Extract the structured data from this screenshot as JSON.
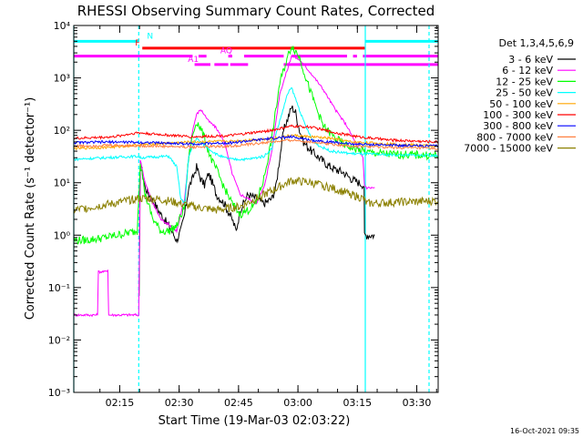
{
  "chart_data": {
    "type": "line",
    "title": "RHESSI Observing Summary Count Rates, Corrected",
    "xlabel": "Start Time (19-Mar-03 02:03:22)",
    "ylabel": "Corrected Count Rate (s⁻¹ detector⁻¹)",
    "x_unit": "minutes after 02:03:22",
    "xlim": [
      0,
      92
    ],
    "ylim": [
      0.001,
      10000
    ],
    "yscale": "log",
    "grid": false,
    "legend_position": "top-right",
    "legend_title": "Det 1,3,4,5,6,9",
    "xticks": [
      {
        "t": 11.6,
        "label": "02:15"
      },
      {
        "t": 26.6,
        "label": "02:30"
      },
      {
        "t": 41.6,
        "label": "02:45"
      },
      {
        "t": 56.6,
        "label": "03:00"
      },
      {
        "t": 71.6,
        "label": "03:15"
      },
      {
        "t": 86.6,
        "label": "03:30"
      }
    ],
    "yticks": [
      {
        "v": 0.001,
        "label": "10⁻³"
      },
      {
        "v": 0.01,
        "label": "10⁻²"
      },
      {
        "v": 0.1,
        "label": "10⁻¹"
      },
      {
        "v": 1,
        "label": "10⁰"
      },
      {
        "v": 10,
        "label": "10¹"
      },
      {
        "v": 100,
        "label": "10²"
      },
      {
        "v": 1000,
        "label": "10³"
      },
      {
        "v": 10000,
        "label": "10⁴"
      }
    ],
    "vlines": [
      {
        "t": 0,
        "color": "#00ffff",
        "style": "solid"
      },
      {
        "t": 16.4,
        "color": "#00ffff",
        "style": "dashed"
      },
      {
        "t": 73.6,
        "color": "#00ffff",
        "style": "solid"
      },
      {
        "t": 89.7,
        "color": "#00ffff",
        "style": "dashed"
      }
    ],
    "flags": [
      {
        "label": "N",
        "color": "#00ffff",
        "y": 5000,
        "segments": [
          [
            0,
            16.4
          ],
          [
            73.6,
            92
          ]
        ]
      },
      {
        "label": "F",
        "color": "#ff0000",
        "y": 3700,
        "segments": [
          [
            17.3,
            73.6
          ]
        ]
      },
      {
        "label": "AQ",
        "color": "#ff00ff",
        "y": 2600,
        "segments": [
          [
            0,
            30
          ],
          [
            31.5,
            33.5
          ],
          [
            39,
            40
          ],
          [
            43,
            53
          ],
          [
            55,
            69
          ],
          [
            70.5,
            71.5
          ],
          [
            73,
            92
          ]
        ]
      },
      {
        "label": "A1",
        "color": "#ff00ff",
        "y": 1800,
        "segments": [
          [
            30.5,
            34.5
          ],
          [
            35.5,
            39
          ],
          [
            39.5,
            44
          ],
          [
            53,
            92
          ]
        ]
      }
    ],
    "series": [
      {
        "name": "3 - 6 keV",
        "color": "#000000",
        "points": [
          [
            16.5,
            0.06
          ],
          [
            16.8,
            25
          ],
          [
            18,
            8
          ],
          [
            22,
            2.5
          ],
          [
            24,
            1.5
          ],
          [
            26,
            0.8
          ],
          [
            27,
            1.2
          ],
          [
            28,
            2.5
          ],
          [
            29,
            8
          ],
          [
            30,
            12
          ],
          [
            31,
            20
          ],
          [
            32,
            12
          ],
          [
            33,
            9
          ],
          [
            34,
            15
          ],
          [
            35,
            10
          ],
          [
            36,
            6
          ],
          [
            38,
            4
          ],
          [
            40,
            2
          ],
          [
            41,
            1.2
          ],
          [
            42,
            3
          ],
          [
            44,
            6
          ],
          [
            46,
            5
          ],
          [
            48,
            4
          ],
          [
            50,
            5
          ],
          [
            51,
            8
          ],
          [
            52,
            30
          ],
          [
            53,
            100
          ],
          [
            55,
            280
          ],
          [
            56,
            220
          ],
          [
            57,
            100
          ],
          [
            58,
            60
          ],
          [
            60,
            40
          ],
          [
            62,
            30
          ],
          [
            64,
            22
          ],
          [
            66,
            18
          ],
          [
            68,
            16
          ],
          [
            70,
            12
          ],
          [
            72,
            10
          ],
          [
            73.3,
            9
          ],
          [
            73.4,
            1.0
          ],
          [
            76,
            1.0
          ]
        ]
      },
      {
        "name": "6 - 12 keV",
        "color": "#ff00ff",
        "points": [
          [
            0,
            0.03
          ],
          [
            6,
            0.03
          ],
          [
            6.2,
            0.2
          ],
          [
            8,
            0.2
          ],
          [
            8.6,
            0.22
          ],
          [
            8.8,
            0.03
          ],
          [
            16.4,
            0.03
          ],
          [
            16.8,
            28
          ],
          [
            18,
            10
          ],
          [
            20,
            4
          ],
          [
            22,
            2
          ],
          [
            24,
            1.6
          ],
          [
            26,
            1.2
          ],
          [
            28,
            5
          ],
          [
            29,
            30
          ],
          [
            30,
            100
          ],
          [
            31,
            200
          ],
          [
            32,
            250
          ],
          [
            33,
            200
          ],
          [
            34,
            150
          ],
          [
            35,
            130
          ],
          [
            36,
            110
          ],
          [
            38,
            60
          ],
          [
            40,
            15
          ],
          [
            42,
            6
          ],
          [
            44,
            5
          ],
          [
            46,
            4
          ],
          [
            48,
            8
          ],
          [
            50,
            40
          ],
          [
            52,
            500
          ],
          [
            54,
            1500
          ],
          [
            55,
            2700
          ],
          [
            57,
            2200
          ],
          [
            60,
            1200
          ],
          [
            63,
            600
          ],
          [
            66,
            250
          ],
          [
            69,
            120
          ],
          [
            71,
            60
          ],
          [
            73,
            30
          ],
          [
            73.4,
            9
          ],
          [
            74,
            8
          ],
          [
            76,
            8
          ]
        ]
      },
      {
        "name": "12 - 25 keV",
        "color": "#00ff00",
        "points": [
          [
            0,
            0.8
          ],
          [
            3,
            0.8
          ],
          [
            8,
            0.9
          ],
          [
            16,
            1.2
          ],
          [
            16.8,
            26
          ],
          [
            18,
            6
          ],
          [
            20,
            2
          ],
          [
            22,
            1.2
          ],
          [
            24,
            1.2
          ],
          [
            26,
            1.5
          ],
          [
            28,
            3.5
          ],
          [
            29,
            30
          ],
          [
            30,
            80
          ],
          [
            31,
            150
          ],
          [
            32,
            110
          ],
          [
            33,
            70
          ],
          [
            34,
            40
          ],
          [
            35,
            25
          ],
          [
            36,
            18
          ],
          [
            38,
            8
          ],
          [
            40,
            4
          ],
          [
            42,
            2.5
          ],
          [
            44,
            3
          ],
          [
            46,
            4
          ],
          [
            48,
            12
          ],
          [
            50,
            70
          ],
          [
            52,
            800
          ],
          [
            54,
            2500
          ],
          [
            55,
            4200
          ],
          [
            57,
            2500
          ],
          [
            59,
            800
          ],
          [
            61,
            300
          ],
          [
            63,
            120
          ],
          [
            66,
            70
          ],
          [
            69,
            50
          ],
          [
            72,
            42
          ],
          [
            74,
            38
          ],
          [
            80,
            35
          ],
          [
            92,
            33
          ]
        ]
      },
      {
        "name": "25 - 50 keV",
        "color": "#00ffff",
        "points": [
          [
            0,
            28
          ],
          [
            8,
            30
          ],
          [
            16,
            32
          ],
          [
            17,
            30
          ],
          [
            20,
            31
          ],
          [
            24,
            32
          ],
          [
            26,
            20
          ],
          [
            27,
            5
          ],
          [
            28,
            4
          ],
          [
            29,
            30
          ],
          [
            30,
            50
          ],
          [
            31,
            70
          ],
          [
            32,
            60
          ],
          [
            34,
            45
          ],
          [
            36,
            35
          ],
          [
            38,
            30
          ],
          [
            40,
            28
          ],
          [
            42,
            28
          ],
          [
            44,
            28
          ],
          [
            46,
            30
          ],
          [
            48,
            32
          ],
          [
            50,
            45
          ],
          [
            52,
            150
          ],
          [
            54,
            500
          ],
          [
            55,
            650
          ],
          [
            56,
            400
          ],
          [
            58,
            150
          ],
          [
            60,
            70
          ],
          [
            62,
            50
          ],
          [
            65,
            40
          ],
          [
            70,
            36
          ],
          [
            80,
            34
          ],
          [
            92,
            33
          ]
        ]
      },
      {
        "name": "50 - 100 keV",
        "color": "#ffa500",
        "points": [
          [
            0,
            45
          ],
          [
            10,
            48
          ],
          [
            20,
            55
          ],
          [
            30,
            60
          ],
          [
            40,
            62
          ],
          [
            50,
            70
          ],
          [
            55,
            80
          ],
          [
            60,
            75
          ],
          [
            65,
            70
          ],
          [
            70,
            60
          ],
          [
            80,
            55
          ],
          [
            92,
            50
          ]
        ]
      },
      {
        "name": "100 - 300 keV",
        "color": "#ff0000",
        "points": [
          [
            0,
            70
          ],
          [
            10,
            75
          ],
          [
            16,
            90
          ],
          [
            20,
            85
          ],
          [
            30,
            75
          ],
          [
            40,
            80
          ],
          [
            50,
            100
          ],
          [
            55,
            120
          ],
          [
            60,
            115
          ],
          [
            66,
            90
          ],
          [
            72,
            75
          ],
          [
            80,
            65
          ],
          [
            92,
            60
          ]
        ]
      },
      {
        "name": "300 - 800 keV",
        "color": "#0000ff",
        "points": [
          [
            0,
            58
          ],
          [
            10,
            60
          ],
          [
            20,
            58
          ],
          [
            30,
            55
          ],
          [
            40,
            58
          ],
          [
            50,
            70
          ],
          [
            55,
            75
          ],
          [
            60,
            65
          ],
          [
            70,
            55
          ],
          [
            80,
            52
          ],
          [
            92,
            50
          ]
        ]
      },
      {
        "name": "800 - 7000 keV",
        "color": "#ff8040",
        "points": [
          [
            0,
            50
          ],
          [
            10,
            52
          ],
          [
            20,
            50
          ],
          [
            30,
            48
          ],
          [
            40,
            50
          ],
          [
            50,
            60
          ],
          [
            55,
            65
          ],
          [
            60,
            60
          ],
          [
            70,
            50
          ],
          [
            80,
            47
          ],
          [
            92,
            45
          ]
        ]
      },
      {
        "name": "7000 - 15000 keV",
        "color": "#8b8000",
        "points": [
          [
            0,
            3
          ],
          [
            5,
            3.5
          ],
          [
            10,
            4
          ],
          [
            16,
            5
          ],
          [
            20,
            5
          ],
          [
            24,
            4.5
          ],
          [
            30,
            3.5
          ],
          [
            36,
            3
          ],
          [
            42,
            3.5
          ],
          [
            46,
            5
          ],
          [
            50,
            7
          ],
          [
            55,
            11
          ],
          [
            60,
            10
          ],
          [
            65,
            8
          ],
          [
            70,
            6
          ],
          [
            73,
            5
          ],
          [
            74,
            4
          ],
          [
            80,
            4.2
          ],
          [
            92,
            4.5
          ]
        ]
      }
    ]
  },
  "footer": {
    "date_stamp": "16-Oct-2021 09:35"
  }
}
